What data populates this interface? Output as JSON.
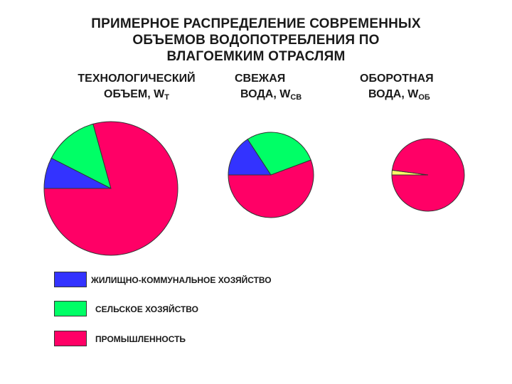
{
  "title_lines": [
    "ПРИМЕРНОЕ РАСПРЕДЕЛЕНИЕ СОВРЕМЕННЫХ",
    "ОБЪЕМОВ ВОДОПОТРЕБЛЕНИЯ ПО",
    "ВЛАГОЕМКИМ ОТРАСЛЯМ"
  ],
  "pies": [
    {
      "label_line1": "ТЕХНОЛОГИЧЕСКИЙ",
      "label_line2": "ОБЪЕМ, W",
      "label_sub": "Т"
    },
    {
      "label_line1": "СВЕЖАЯ",
      "label_line2": "ВОДА, W",
      "label_sub": "СВ"
    },
    {
      "label_line1": "ОБОРОТНАЯ",
      "label_line2": "ВОДА, W",
      "label_sub": "ОБ"
    }
  ],
  "chart_data": {
    "type": "pie",
    "colors": {
      "zhkh": "#3333ff",
      "agri": "#00ff66",
      "industry": "#ff0066",
      "other": "#ffff66"
    },
    "pies": [
      {
        "name": "ТЕХНОЛОГИЧЕСКИЙ ОБЪЕМ, WТ",
        "slices": [
          {
            "key": "zhkh",
            "category": "ЖИЛИЩНО-КОММУНАЛЬНОЕ ХОЗЯЙСТВО",
            "value": 7.5
          },
          {
            "key": "agri",
            "category": "СЕЛЬСКОЕ ХОЗЯЙСТВО",
            "value": 13.2
          },
          {
            "key": "industry",
            "category": "ПРОМЫШЛЕННОСТЬ",
            "value": 79.3
          }
        ]
      },
      {
        "name": "СВЕЖАЯ ВОДА, WСВ",
        "slices": [
          {
            "key": "zhkh",
            "category": "ЖИЛИЩНО-КОММУНАЛЬНОЕ ХОЗЯЙСТВО",
            "value": 15.8
          },
          {
            "key": "agri",
            "category": "СЕЛЬСКОЕ ХОЗЯЙСТВО",
            "value": 28.5
          },
          {
            "key": "industry",
            "category": "ПРОМЫШЛЕННОСТЬ",
            "value": 55.7
          }
        ]
      },
      {
        "name": "ОБОРОТНАЯ ВОДА, WОБ",
        "slices": [
          {
            "key": "other",
            "category": "",
            "value": 2.1
          },
          {
            "key": "industry",
            "category": "ПРОМЫШЛЕННОСТЬ",
            "value": 97.9
          }
        ]
      }
    ],
    "legend": [
      {
        "key": "zhkh",
        "label": "ЖИЛИЩНО-КОММУНАЛЬНОЕ ХОЗЯЙСТВО"
      },
      {
        "key": "agri",
        "label": "СЕЛЬСКОЕ ХОЗЯЙСТВО"
      },
      {
        "key": "industry",
        "label": "ПРОМЫШЛЕННОСТЬ"
      }
    ],
    "legend_position": "bottom-left"
  }
}
